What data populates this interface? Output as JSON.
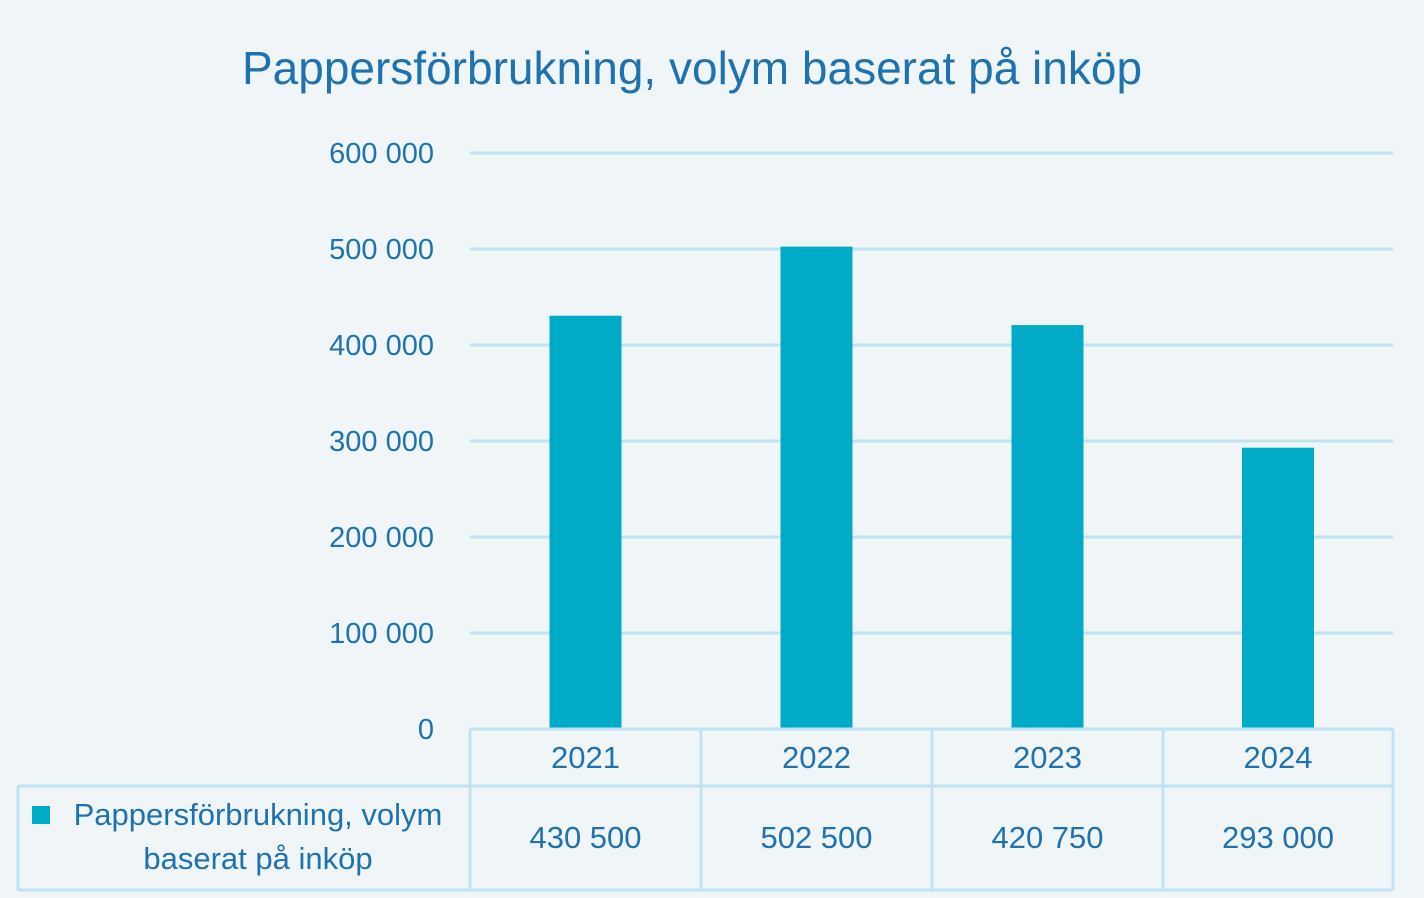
{
  "chart_data": {
    "type": "bar",
    "title": "Pappersförbrukning, volym baserat på inköp",
    "categories": [
      "2021",
      "2022",
      "2023",
      "2024"
    ],
    "series": [
      {
        "name": "Pappersförbrukning, volym baserat på inköp",
        "values": [
          430500,
          502500,
          420750,
          293000
        ],
        "value_labels": [
          "430 500",
          "502 500",
          "420 750",
          "293 000"
        ],
        "color": "#00abc8"
      }
    ],
    "ylim": [
      0,
      600000
    ],
    "yticks": [
      0,
      100000,
      200000,
      300000,
      400000,
      500000,
      600000
    ],
    "ytick_labels": [
      "0",
      "100 000",
      "200 000",
      "300 000",
      "400 000",
      "500 000",
      "600 000"
    ],
    "legend_lines": [
      "Pappersförbrukning, volym",
      "baserat på inköp"
    ],
    "grid": true,
    "legend_placement": "data-table-below",
    "colors": {
      "text": "#1f72b0",
      "grid": "#bfe3f4",
      "bar": "#00abc8",
      "background": "#f0f6f8"
    }
  }
}
